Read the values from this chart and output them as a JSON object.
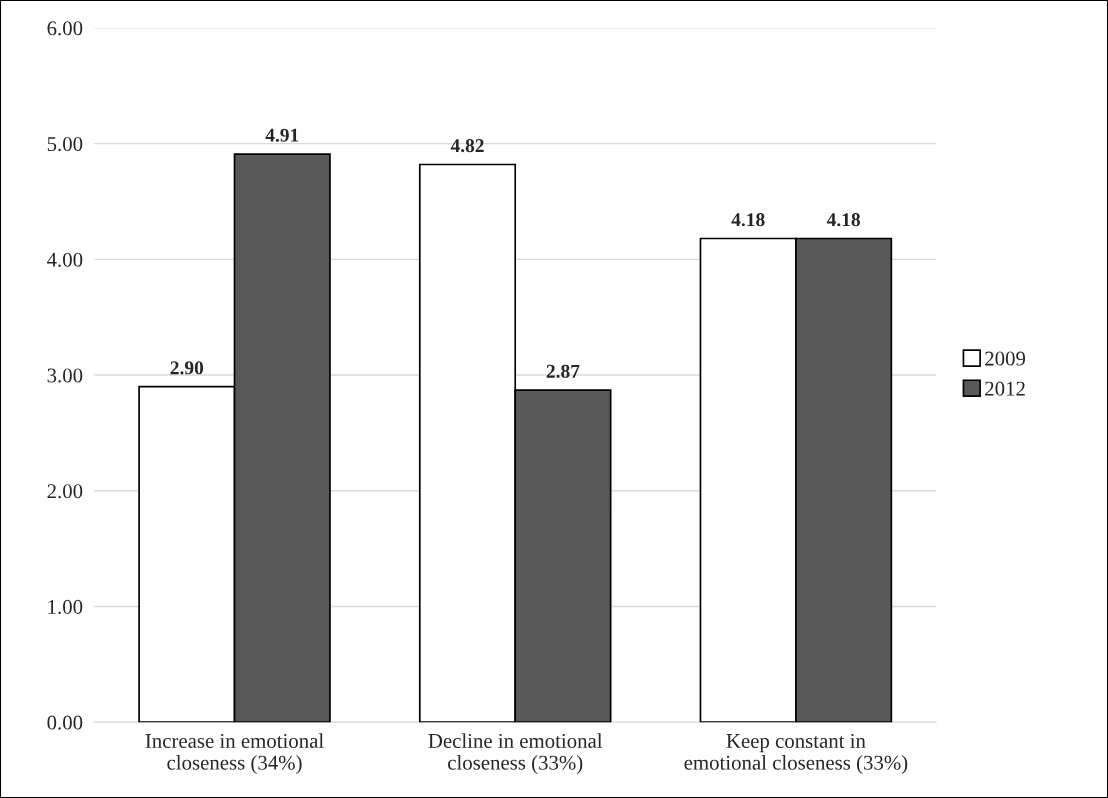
{
  "chart_data": {
    "type": "bar",
    "categories": [
      "Increase in emotional closeness (34%)",
      "Decline in emotional closeness (33%)",
      "Keep constant in emotional closeness (33%)"
    ],
    "series": [
      {
        "name": "2009",
        "color": "#ffffff",
        "values": [
          2.9,
          4.82,
          4.18
        ],
        "value_labels": [
          "2.90",
          "4.82",
          "4.18"
        ]
      },
      {
        "name": "2012",
        "color": "#595959",
        "values": [
          4.91,
          2.87,
          4.18
        ],
        "value_labels": [
          "4.91",
          "2.87",
          "4.18"
        ]
      }
    ],
    "ylim": [
      0,
      6
    ],
    "yticks": [
      {
        "value": 0,
        "label": "0.00"
      },
      {
        "value": 1,
        "label": "1.00"
      },
      {
        "value": 2,
        "label": "2.00"
      },
      {
        "value": 3,
        "label": "3.00"
      },
      {
        "value": 4,
        "label": "4.00"
      },
      {
        "value": 5,
        "label": "5.00"
      },
      {
        "value": 6,
        "label": "6.00"
      }
    ],
    "grid": "y",
    "legend": "right"
  }
}
